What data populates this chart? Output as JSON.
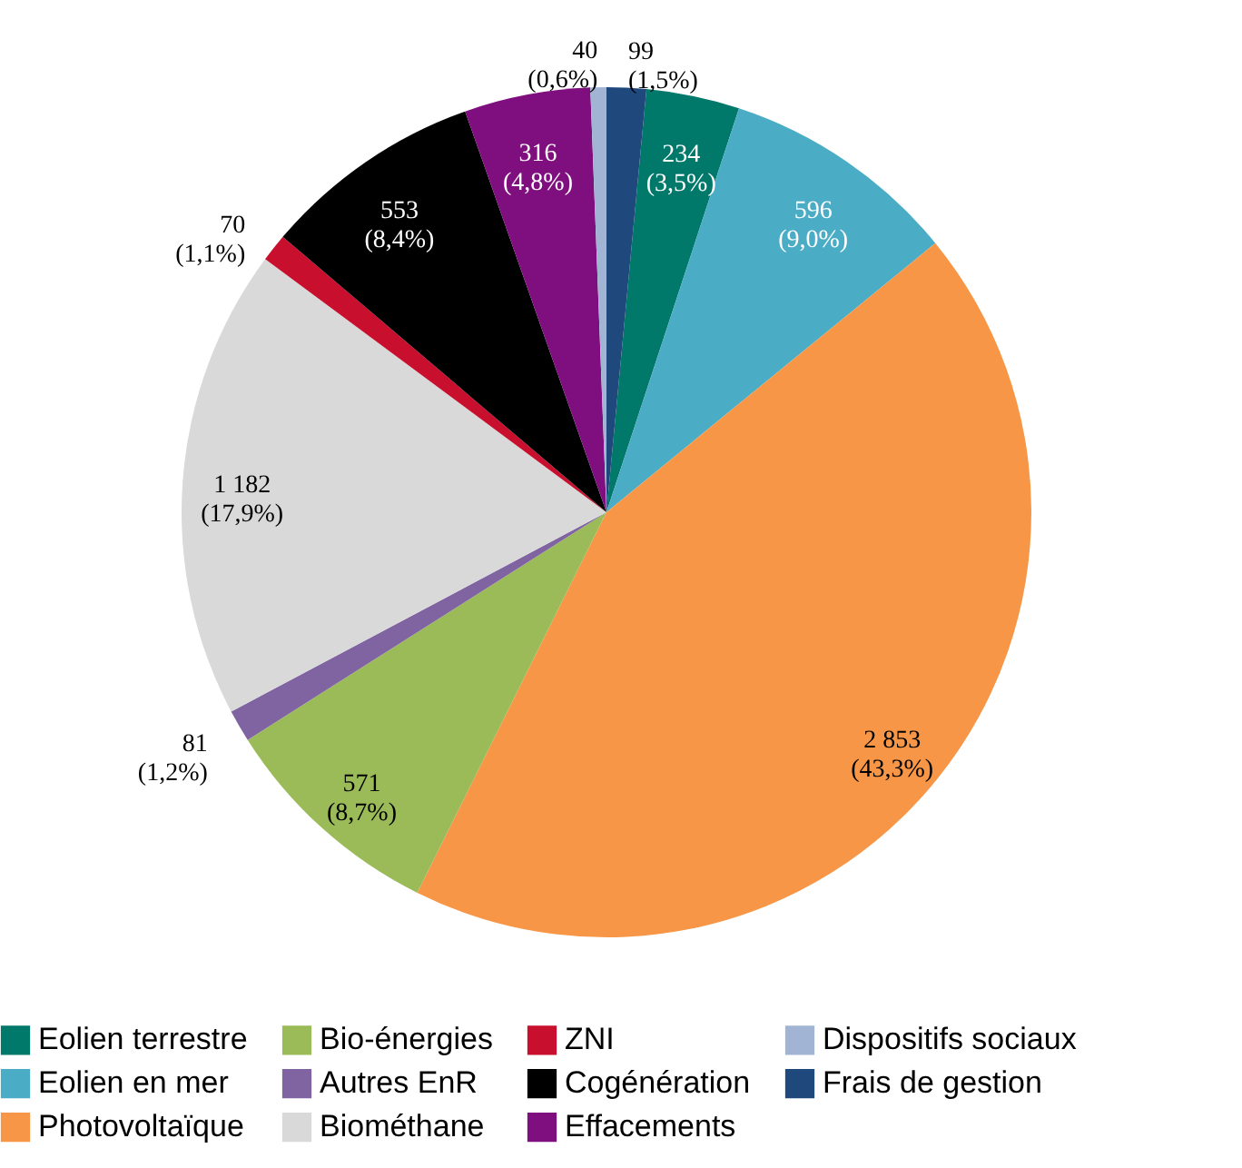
{
  "chart_data": {
    "type": "pie",
    "categories": [
      "Eolien terrestre",
      "Eolien en mer",
      "Photovoltaïque",
      "Bio-énergies",
      "Autres EnR",
      "Biométhane",
      "ZNI",
      "Cogénération",
      "Effacements",
      "Dispositifs sociaux",
      "Frais de gestion"
    ],
    "values": [
      234,
      596,
      2853,
      571,
      81,
      1182,
      70,
      553,
      316,
      40,
      99
    ],
    "colors": [
      "#00786a",
      "#4bacc6",
      "#f79646",
      "#9bbb59",
      "#8064a2",
      "#d9d9d9",
      "#c8102e",
      "#000000",
      "#7f0f7e",
      "#a2b4d4",
      "#1f497d"
    ],
    "value_labels": [
      "234\n(3,5%)",
      "596\n(9,0%)",
      "2 853\n(43,3%)",
      "571\n(8,7%)",
      "81\n(1,2%)",
      "1 182\n(17,9%)",
      "70\n(1,1%)",
      "553\n(8,4%)",
      "316\n(4,8%)",
      "40\n(0,6%)",
      "99\n(1,5%)"
    ],
    "legend": "bottom"
  }
}
